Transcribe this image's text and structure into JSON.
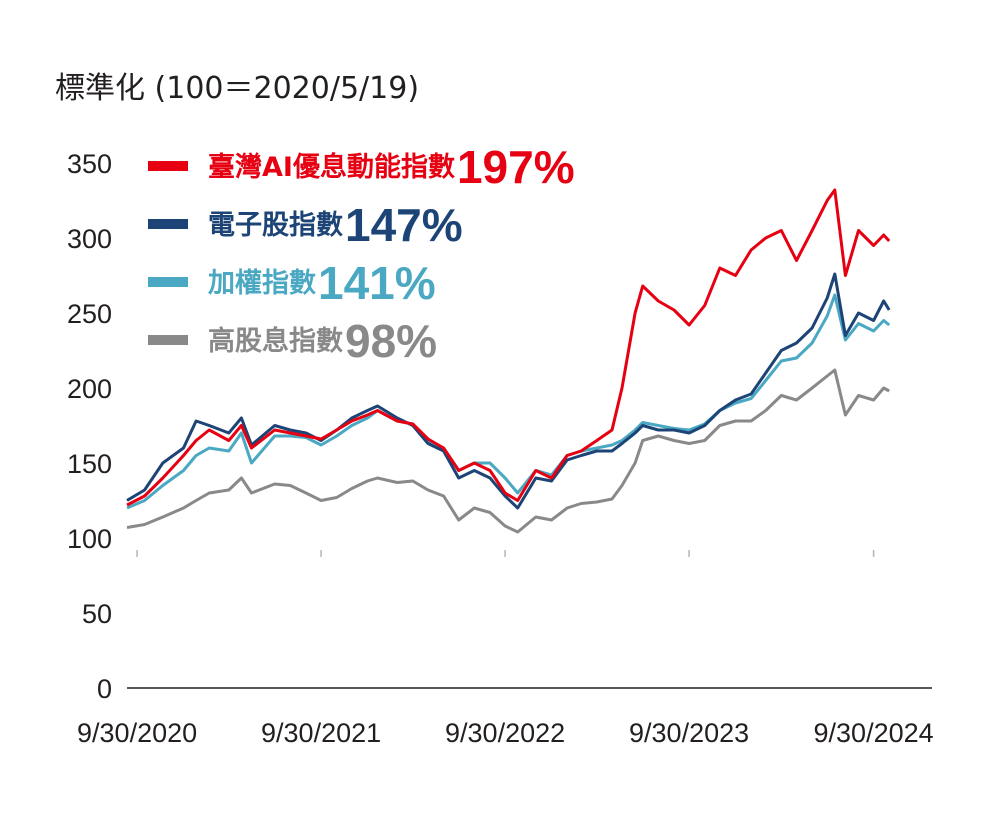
{
  "chart_data": {
    "type": "line",
    "ylabel": "標準化 (100＝2020/5/19)",
    "ylim": [
      0,
      350
    ],
    "yticks": [
      0,
      50,
      100,
      150,
      200,
      250,
      300,
      350
    ],
    "xlim": [
      "2020-09-10",
      "2025-01-10"
    ],
    "xticks": [
      "9/30/2020",
      "9/30/2021",
      "9/30/2022",
      "9/30/2023",
      "9/30/2024"
    ],
    "xtick_dates": [
      "2020-09-30",
      "2021-09-30",
      "2022-09-30",
      "2023-09-30",
      "2024-09-30"
    ],
    "legend_position": "top-left",
    "grid": false,
    "series": [
      {
        "name": "臺灣AI優息動能指數",
        "return_label": "197%",
        "color": "#e60012",
        "points": [
          [
            "2020-09-10",
            122
          ],
          [
            "2020-10-15",
            128
          ],
          [
            "2020-11-20",
            140
          ],
          [
            "2020-12-31",
            155
          ],
          [
            "2021-01-25",
            165
          ],
          [
            "2021-02-20",
            172
          ],
          [
            "2021-03-31",
            165
          ],
          [
            "2021-04-25",
            175
          ],
          [
            "2021-05-15",
            160
          ],
          [
            "2021-06-30",
            172
          ],
          [
            "2021-07-31",
            170
          ],
          [
            "2021-08-31",
            168
          ],
          [
            "2021-09-30",
            166
          ],
          [
            "2021-10-31",
            172
          ],
          [
            "2021-11-30",
            178
          ],
          [
            "2021-12-31",
            182
          ],
          [
            "2022-01-20",
            185
          ],
          [
            "2022-02-28",
            178
          ],
          [
            "2022-03-31",
            176
          ],
          [
            "2022-04-30",
            166
          ],
          [
            "2022-05-31",
            160
          ],
          [
            "2022-06-30",
            145
          ],
          [
            "2022-07-31",
            150
          ],
          [
            "2022-08-31",
            145
          ],
          [
            "2022-09-30",
            130
          ],
          [
            "2022-10-25",
            125
          ],
          [
            "2022-11-30",
            145
          ],
          [
            "2022-12-31",
            140
          ],
          [
            "2023-01-31",
            155
          ],
          [
            "2023-02-28",
            158
          ],
          [
            "2023-03-31",
            165
          ],
          [
            "2023-04-30",
            172
          ],
          [
            "2023-05-20",
            200
          ],
          [
            "2023-06-15",
            250
          ],
          [
            "2023-06-30",
            268
          ],
          [
            "2023-07-31",
            258
          ],
          [
            "2023-08-31",
            252
          ],
          [
            "2023-09-30",
            242
          ],
          [
            "2023-10-31",
            255
          ],
          [
            "2023-11-30",
            280
          ],
          [
            "2023-12-31",
            275
          ],
          [
            "2024-01-31",
            292
          ],
          [
            "2024-02-29",
            300
          ],
          [
            "2024-03-31",
            305
          ],
          [
            "2024-04-30",
            285
          ],
          [
            "2024-05-31",
            305
          ],
          [
            "2024-06-30",
            325
          ],
          [
            "2024-07-15",
            332
          ],
          [
            "2024-08-05",
            275
          ],
          [
            "2024-08-31",
            305
          ],
          [
            "2024-09-30",
            295
          ],
          [
            "2024-10-20",
            302
          ],
          [
            "2024-10-31",
            298
          ]
        ]
      },
      {
        "name": "電子股指數",
        "return_label": "147%",
        "color": "#1d4476",
        "points": [
          [
            "2020-09-10",
            125
          ],
          [
            "2020-10-15",
            132
          ],
          [
            "2020-11-20",
            150
          ],
          [
            "2020-12-31",
            160
          ],
          [
            "2021-01-25",
            178
          ],
          [
            "2021-02-20",
            175
          ],
          [
            "2021-03-31",
            170
          ],
          [
            "2021-04-25",
            180
          ],
          [
            "2021-05-15",
            162
          ],
          [
            "2021-06-30",
            175
          ],
          [
            "2021-07-31",
            172
          ],
          [
            "2021-08-31",
            170
          ],
          [
            "2021-09-30",
            165
          ],
          [
            "2021-10-31",
            172
          ],
          [
            "2021-11-30",
            180
          ],
          [
            "2021-12-31",
            185
          ],
          [
            "2022-01-20",
            188
          ],
          [
            "2022-02-28",
            180
          ],
          [
            "2022-03-31",
            175
          ],
          [
            "2022-04-30",
            163
          ],
          [
            "2022-05-31",
            158
          ],
          [
            "2022-06-30",
            140
          ],
          [
            "2022-07-31",
            145
          ],
          [
            "2022-08-31",
            140
          ],
          [
            "2022-09-30",
            128
          ],
          [
            "2022-10-25",
            120
          ],
          [
            "2022-11-30",
            140
          ],
          [
            "2022-12-31",
            138
          ],
          [
            "2023-01-31",
            152
          ],
          [
            "2023-02-28",
            155
          ],
          [
            "2023-03-31",
            158
          ],
          [
            "2023-04-30",
            158
          ],
          [
            "2023-05-20",
            163
          ],
          [
            "2023-06-15",
            170
          ],
          [
            "2023-06-30",
            175
          ],
          [
            "2023-07-31",
            172
          ],
          [
            "2023-08-31",
            172
          ],
          [
            "2023-09-30",
            170
          ],
          [
            "2023-10-31",
            175
          ],
          [
            "2023-11-30",
            185
          ],
          [
            "2023-12-31",
            192
          ],
          [
            "2024-01-31",
            196
          ],
          [
            "2024-02-29",
            210
          ],
          [
            "2024-03-31",
            225
          ],
          [
            "2024-04-30",
            230
          ],
          [
            "2024-05-31",
            240
          ],
          [
            "2024-06-30",
            260
          ],
          [
            "2024-07-15",
            276
          ],
          [
            "2024-08-05",
            235
          ],
          [
            "2024-08-31",
            250
          ],
          [
            "2024-09-30",
            245
          ],
          [
            "2024-10-20",
            258
          ],
          [
            "2024-10-31",
            252
          ]
        ]
      },
      {
        "name": "加權指數",
        "return_label": "141%",
        "color": "#4aa8c3",
        "points": [
          [
            "2020-09-10",
            120
          ],
          [
            "2020-10-15",
            125
          ],
          [
            "2020-11-20",
            135
          ],
          [
            "2020-12-31",
            145
          ],
          [
            "2021-01-25",
            155
          ],
          [
            "2021-02-20",
            160
          ],
          [
            "2021-03-31",
            158
          ],
          [
            "2021-04-25",
            170
          ],
          [
            "2021-05-15",
            150
          ],
          [
            "2021-06-30",
            168
          ],
          [
            "2021-07-31",
            168
          ],
          [
            "2021-08-31",
            167
          ],
          [
            "2021-09-30",
            162
          ],
          [
            "2021-10-31",
            168
          ],
          [
            "2021-11-30",
            175
          ],
          [
            "2021-12-31",
            180
          ],
          [
            "2022-01-20",
            185
          ],
          [
            "2022-02-28",
            178
          ],
          [
            "2022-03-31",
            176
          ],
          [
            "2022-04-30",
            165
          ],
          [
            "2022-05-31",
            160
          ],
          [
            "2022-06-30",
            145
          ],
          [
            "2022-07-31",
            150
          ],
          [
            "2022-08-31",
            150
          ],
          [
            "2022-09-30",
            140
          ],
          [
            "2022-10-25",
            130
          ],
          [
            "2022-11-30",
            145
          ],
          [
            "2022-12-31",
            142
          ],
          [
            "2023-01-31",
            155
          ],
          [
            "2023-02-28",
            158
          ],
          [
            "2023-03-31",
            160
          ],
          [
            "2023-04-30",
            162
          ],
          [
            "2023-05-20",
            165
          ],
          [
            "2023-06-15",
            172
          ],
          [
            "2023-06-30",
            177
          ],
          [
            "2023-07-31",
            175
          ],
          [
            "2023-08-31",
            173
          ],
          [
            "2023-09-30",
            172
          ],
          [
            "2023-10-31",
            176
          ],
          [
            "2023-11-30",
            185
          ],
          [
            "2023-12-31",
            190
          ],
          [
            "2024-01-31",
            193
          ],
          [
            "2024-02-29",
            205
          ],
          [
            "2024-03-31",
            218
          ],
          [
            "2024-04-30",
            220
          ],
          [
            "2024-05-31",
            230
          ],
          [
            "2024-06-30",
            248
          ],
          [
            "2024-07-15",
            262
          ],
          [
            "2024-08-05",
            232
          ],
          [
            "2024-08-31",
            243
          ],
          [
            "2024-09-30",
            238
          ],
          [
            "2024-10-20",
            245
          ],
          [
            "2024-10-31",
            242
          ]
        ]
      },
      {
        "name": "高股息指數",
        "return_label": "98%",
        "color": "#898989",
        "points": [
          [
            "2020-09-10",
            107
          ],
          [
            "2020-10-15",
            109
          ],
          [
            "2020-11-20",
            114
          ],
          [
            "2020-12-31",
            120
          ],
          [
            "2021-01-25",
            125
          ],
          [
            "2021-02-20",
            130
          ],
          [
            "2021-03-31",
            132
          ],
          [
            "2021-04-25",
            140
          ],
          [
            "2021-05-15",
            130
          ],
          [
            "2021-06-30",
            136
          ],
          [
            "2021-07-31",
            135
          ],
          [
            "2021-08-31",
            130
          ],
          [
            "2021-09-30",
            125
          ],
          [
            "2021-10-31",
            127
          ],
          [
            "2021-11-30",
            133
          ],
          [
            "2021-12-31",
            138
          ],
          [
            "2022-01-20",
            140
          ],
          [
            "2022-02-28",
            137
          ],
          [
            "2022-03-31",
            138
          ],
          [
            "2022-04-30",
            132
          ],
          [
            "2022-05-31",
            128
          ],
          [
            "2022-06-30",
            112
          ],
          [
            "2022-07-31",
            120
          ],
          [
            "2022-08-31",
            117
          ],
          [
            "2022-09-30",
            108
          ],
          [
            "2022-10-25",
            104
          ],
          [
            "2022-11-30",
            114
          ],
          [
            "2022-12-31",
            112
          ],
          [
            "2023-01-31",
            120
          ],
          [
            "2023-02-28",
            123
          ],
          [
            "2023-03-31",
            124
          ],
          [
            "2023-04-30",
            126
          ],
          [
            "2023-05-20",
            135
          ],
          [
            "2023-06-15",
            150
          ],
          [
            "2023-06-30",
            165
          ],
          [
            "2023-07-31",
            168
          ],
          [
            "2023-08-31",
            165
          ],
          [
            "2023-09-30",
            163
          ],
          [
            "2023-10-31",
            165
          ],
          [
            "2023-11-30",
            175
          ],
          [
            "2023-12-31",
            178
          ],
          [
            "2024-01-31",
            178
          ],
          [
            "2024-02-29",
            185
          ],
          [
            "2024-03-31",
            195
          ],
          [
            "2024-04-30",
            192
          ],
          [
            "2024-05-31",
            200
          ],
          [
            "2024-06-30",
            208
          ],
          [
            "2024-07-15",
            212
          ],
          [
            "2024-08-05",
            182
          ],
          [
            "2024-08-31",
            195
          ],
          [
            "2024-09-30",
            192
          ],
          [
            "2024-10-20",
            200
          ],
          [
            "2024-10-31",
            198
          ]
        ]
      }
    ]
  }
}
